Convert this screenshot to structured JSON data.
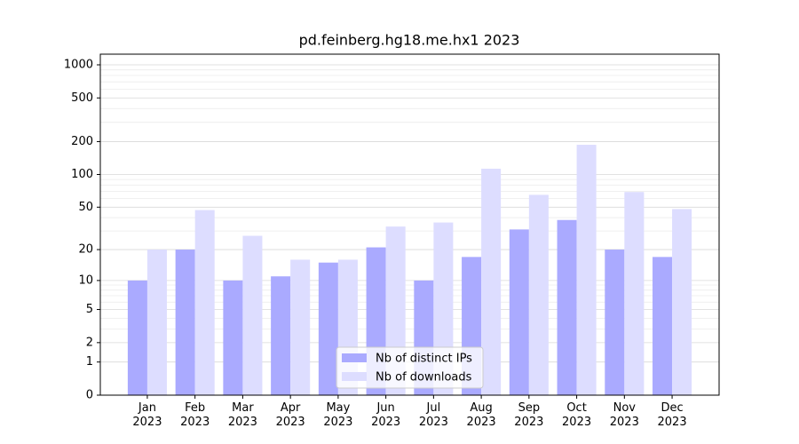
{
  "chart_data": {
    "type": "bar",
    "title": "pd.feinberg.hg18.me.hx1 2023",
    "categories": [
      "Jan\n2023",
      "Feb\n2023",
      "Mar\n2023",
      "Apr\n2023",
      "May\n2023",
      "Jun\n2023",
      "Jul\n2023",
      "Aug\n2023",
      "Sep\n2023",
      "Oct\n2023",
      "Nov\n2023",
      "Dec\n2023"
    ],
    "series": [
      {
        "name": "Nb of distinct IPs",
        "color": "#aaaaff",
        "values": [
          10,
          20,
          10,
          11,
          15,
          21,
          10,
          17,
          31,
          38,
          20,
          17
        ]
      },
      {
        "name": "Nb of downloads",
        "color": "#ddddff",
        "values": [
          20,
          47,
          27,
          16,
          16,
          33,
          36,
          113,
          65,
          187,
          69,
          48
        ]
      }
    ],
    "yscale": "log1p",
    "ylim": [
      0,
      1250
    ],
    "yticks": [
      0,
      1,
      2,
      5,
      10,
      20,
      50,
      100,
      200,
      500,
      1000
    ],
    "yminorticks": [
      3,
      4,
      6,
      7,
      8,
      9,
      30,
      40,
      60,
      70,
      80,
      90,
      300,
      400,
      600,
      700,
      800,
      900
    ],
    "grid": true,
    "legend": "lower center"
  }
}
